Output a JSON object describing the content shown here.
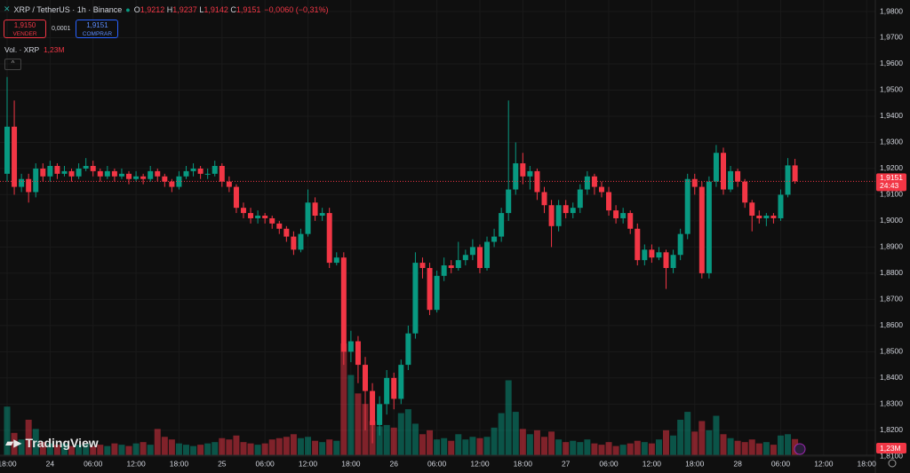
{
  "chart_data": {
    "type": "candlestick",
    "title": "XRP / TetherUS · 1h · Binance",
    "ohlc_letters": [
      "O",
      "H",
      "L",
      "C"
    ],
    "ohlc_texts": [
      "1,9212",
      "1,9237",
      "1,9142",
      "1,9151"
    ],
    "change_text": "−0,0060 (−0,31%)",
    "sell": {
      "price": "1,9150",
      "label": "VENDER"
    },
    "spread": "0,0001",
    "buy": {
      "price": "1,9151",
      "label": "COMPRAR"
    },
    "volume_title": "Vol. · XRP",
    "volume_label": "1,23M",
    "logo": "TradingView",
    "countdown": "24:43",
    "current_price": {
      "value": 1.9151,
      "label": "1,9151"
    },
    "up_color": "#089981",
    "down_color": "#f23645",
    "ylim": [
      1.80366,
      1.98441
    ],
    "yticks": [
      {
        "value": 1.98,
        "label": "1,9800"
      },
      {
        "value": 1.97,
        "label": "1,9700"
      },
      {
        "value": 1.96,
        "label": "1,9600"
      },
      {
        "value": 1.95,
        "label": "1,9500"
      },
      {
        "value": 1.94,
        "label": "1,9400"
      },
      {
        "value": 1.93,
        "label": "1,9300"
      },
      {
        "value": 1.92,
        "label": "1,9200"
      },
      {
        "value": 1.91,
        "label": "1,9100"
      },
      {
        "value": 1.9,
        "label": "1,9000"
      },
      {
        "value": 1.89,
        "label": "1,8900"
      },
      {
        "value": 1.88,
        "label": "1,8800"
      },
      {
        "value": 1.87,
        "label": "1,8700"
      },
      {
        "value": 1.86,
        "label": "1,8600"
      },
      {
        "value": 1.85,
        "label": "1,8500"
      },
      {
        "value": 1.84,
        "label": "1,8400"
      },
      {
        "value": 1.83,
        "label": "1,8300"
      },
      {
        "value": 1.82,
        "label": "1,8200"
      },
      {
        "value": 1.81,
        "label": "1,8100"
      }
    ],
    "xticks": [
      {
        "value": 0,
        "label": "18:00"
      },
      {
        "value": 6,
        "label": "24"
      },
      {
        "value": 12,
        "label": "06:00"
      },
      {
        "value": 18,
        "label": "12:00"
      },
      {
        "value": 24,
        "label": "18:00"
      },
      {
        "value": 30,
        "label": "25"
      },
      {
        "value": 36,
        "label": "06:00"
      },
      {
        "value": 42,
        "label": "12:00"
      },
      {
        "value": 48,
        "label": "18:00"
      },
      {
        "value": 54,
        "label": "26"
      },
      {
        "value": 60,
        "label": "06:00"
      },
      {
        "value": 66,
        "label": "12:00"
      },
      {
        "value": 72,
        "label": "18:00"
      },
      {
        "value": 78,
        "label": "27"
      },
      {
        "value": 84,
        "label": "06:00"
      },
      {
        "value": 90,
        "label": "12:00"
      },
      {
        "value": 96,
        "label": "18:00"
      },
      {
        "value": 102,
        "label": "28"
      },
      {
        "value": 108,
        "label": "06:00"
      },
      {
        "value": 114,
        "label": "12:00"
      },
      {
        "value": 120,
        "label": "18:00"
      }
    ],
    "candles": [
      [
        1.918,
        1.955,
        1.915,
        1.936
      ],
      [
        1.936,
        1.946,
        1.91,
        1.913
      ],
      [
        1.913,
        1.918,
        1.911,
        1.916
      ],
      [
        1.916,
        1.918,
        1.907,
        1.911
      ],
      [
        1.911,
        1.922,
        1.909,
        1.92
      ],
      [
        1.92,
        1.922,
        1.915,
        1.917
      ],
      [
        1.917,
        1.923,
        1.915,
        1.921
      ],
      [
        1.921,
        1.922,
        1.916,
        1.918
      ],
      [
        1.918,
        1.921,
        1.917,
        1.919
      ],
      [
        1.919,
        1.92,
        1.915,
        1.917
      ],
      [
        1.917,
        1.922,
        1.916,
        1.92
      ],
      [
        1.92,
        1.924,
        1.919,
        1.921
      ],
      [
        1.921,
        1.923,
        1.917,
        1.919
      ],
      [
        1.919,
        1.92,
        1.915,
        1.917
      ],
      [
        1.917,
        1.921,
        1.916,
        1.919
      ],
      [
        1.919,
        1.92,
        1.915,
        1.917
      ],
      [
        1.917,
        1.92,
        1.916,
        1.918
      ],
      [
        1.918,
        1.919,
        1.914,
        1.916
      ],
      [
        1.916,
        1.919,
        1.915,
        1.917
      ],
      [
        1.917,
        1.918,
        1.914,
        1.916
      ],
      [
        1.916,
        1.921,
        1.915,
        1.919
      ],
      [
        1.919,
        1.92,
        1.915,
        1.917
      ],
      [
        1.917,
        1.918,
        1.913,
        1.915
      ],
      [
        1.915,
        1.916,
        1.911,
        1.913
      ],
      [
        1.913,
        1.919,
        1.912,
        1.917
      ],
      [
        1.917,
        1.921,
        1.916,
        1.919
      ],
      [
        1.919,
        1.922,
        1.917,
        1.92
      ],
      [
        1.92,
        1.921,
        1.916,
        1.918
      ],
      [
        1.918,
        1.92,
        1.916,
        1.918
      ],
      [
        1.918,
        1.923,
        1.917,
        1.921
      ],
      [
        1.921,
        1.922,
        1.913,
        1.915
      ],
      [
        1.915,
        1.917,
        1.911,
        1.913
      ],
      [
        1.913,
        1.914,
        1.903,
        1.905
      ],
      [
        1.905,
        1.907,
        1.901,
        1.903
      ],
      [
        1.903,
        1.905,
        1.899,
        1.901
      ],
      [
        1.901,
        1.904,
        1.899,
        1.902
      ],
      [
        1.902,
        1.903,
        1.899,
        1.901
      ],
      [
        1.901,
        1.902,
        1.897,
        1.899
      ],
      [
        1.899,
        1.9,
        1.895,
        1.897
      ],
      [
        1.897,
        1.898,
        1.892,
        1.894
      ],
      [
        1.894,
        1.896,
        1.887,
        1.889
      ],
      [
        1.889,
        1.897,
        1.888,
        1.895
      ],
      [
        1.895,
        1.912,
        1.894,
        1.907
      ],
      [
        1.907,
        1.909,
        1.9,
        1.902
      ],
      [
        1.902,
        1.905,
        1.9,
        1.903
      ],
      [
        1.903,
        1.905,
        1.882,
        1.884
      ],
      [
        1.884,
        1.888,
        1.883,
        1.886
      ],
      [
        1.886,
        1.888,
        1.845,
        1.85
      ],
      [
        1.85,
        1.858,
        1.846,
        1.854
      ],
      [
        1.854,
        1.856,
        1.838,
        1.845
      ],
      [
        1.845,
        1.848,
        1.82,
        1.835
      ],
      [
        1.835,
        1.838,
        1.815,
        1.822
      ],
      [
        1.822,
        1.833,
        1.818,
        1.83
      ],
      [
        1.83,
        1.843,
        1.826,
        1.84
      ],
      [
        1.84,
        1.842,
        1.828,
        1.832
      ],
      [
        1.832,
        1.847,
        1.83,
        1.845
      ],
      [
        1.845,
        1.86,
        1.843,
        1.857
      ],
      [
        1.857,
        1.888,
        1.855,
        1.884
      ],
      [
        1.884,
        1.886,
        1.878,
        1.882
      ],
      [
        1.882,
        1.884,
        1.864,
        1.866
      ],
      [
        1.866,
        1.881,
        1.865,
        1.879
      ],
      [
        1.879,
        1.886,
        1.877,
        1.883
      ],
      [
        1.883,
        1.885,
        1.88,
        1.882
      ],
      [
        1.882,
        1.892,
        1.881,
        1.885
      ],
      [
        1.885,
        1.889,
        1.883,
        1.887
      ],
      [
        1.887,
        1.893,
        1.885,
        1.89
      ],
      [
        1.89,
        1.891,
        1.88,
        1.882
      ],
      [
        1.882,
        1.894,
        1.881,
        1.892
      ],
      [
        1.892,
        1.897,
        1.89,
        1.894
      ],
      [
        1.894,
        1.905,
        1.892,
        1.903
      ],
      [
        1.903,
        1.946,
        1.9,
        1.912
      ],
      [
        1.912,
        1.93,
        1.91,
        1.922
      ],
      [
        1.922,
        1.926,
        1.914,
        1.917
      ],
      [
        1.917,
        1.921,
        1.912,
        1.919
      ],
      [
        1.919,
        1.92,
        1.908,
        1.911
      ],
      [
        1.911,
        1.913,
        1.903,
        1.906
      ],
      [
        1.906,
        1.908,
        1.89,
        1.898
      ],
      [
        1.898,
        1.908,
        1.896,
        1.906
      ],
      [
        1.906,
        1.908,
        1.901,
        1.903
      ],
      [
        1.903,
        1.907,
        1.901,
        1.905
      ],
      [
        1.905,
        1.914,
        1.903,
        1.912
      ],
      [
        1.912,
        1.919,
        1.91,
        1.917
      ],
      [
        1.917,
        1.918,
        1.91,
        1.913
      ],
      [
        1.913,
        1.915,
        1.909,
        1.911
      ],
      [
        1.911,
        1.913,
        1.902,
        1.904
      ],
      [
        1.904,
        1.906,
        1.899,
        1.901
      ],
      [
        1.901,
        1.905,
        1.899,
        1.903
      ],
      [
        1.903,
        1.904,
        1.895,
        1.897
      ],
      [
        1.897,
        1.899,
        1.883,
        1.885
      ],
      [
        1.885,
        1.891,
        1.883,
        1.889
      ],
      [
        1.889,
        1.891,
        1.884,
        1.886
      ],
      [
        1.886,
        1.89,
        1.885,
        1.888
      ],
      [
        1.888,
        1.889,
        1.874,
        1.882
      ],
      [
        1.882,
        1.889,
        1.88,
        1.887
      ],
      [
        1.887,
        1.897,
        1.885,
        1.895
      ],
      [
        1.895,
        1.918,
        1.893,
        1.916
      ],
      [
        1.916,
        1.918,
        1.91,
        1.913
      ],
      [
        1.913,
        1.915,
        1.878,
        1.88
      ],
      [
        1.88,
        1.917,
        1.878,
        1.915
      ],
      [
        1.915,
        1.929,
        1.913,
        1.926
      ],
      [
        1.926,
        1.928,
        1.91,
        1.912
      ],
      [
        1.912,
        1.921,
        1.911,
        1.919
      ],
      [
        1.919,
        1.92,
        1.913,
        1.915
      ],
      [
        1.915,
        1.916,
        1.905,
        1.907
      ],
      [
        1.907,
        1.908,
        1.896,
        1.902
      ],
      [
        1.902,
        1.904,
        1.899,
        1.901
      ],
      [
        1.901,
        1.903,
        1.898,
        1.902
      ],
      [
        1.902,
        1.903,
        1.899,
        1.901
      ],
      [
        1.901,
        1.912,
        1.9,
        1.91
      ],
      [
        1.91,
        1.924,
        1.909,
        1.9212
      ],
      [
        1.9212,
        1.9237,
        1.9142,
        1.9151
      ]
    ],
    "volumes": [
      3.7,
      1.7,
      1.2,
      2.7,
      2.0,
      1.0,
      0.9,
      0.8,
      0.9,
      0.7,
      0.8,
      0.9,
      0.7,
      0.8,
      0.7,
      0.9,
      0.8,
      0.7,
      0.9,
      1.0,
      0.8,
      2.0,
      1.4,
      1.2,
      0.9,
      0.8,
      0.7,
      0.8,
      0.9,
      1.0,
      1.3,
      1.2,
      1.5,
      1.0,
      0.9,
      0.8,
      0.9,
      1.2,
      1.3,
      1.4,
      1.6,
      1.3,
      1.4,
      1.1,
      1.0,
      1.2,
      1.1,
      8.5,
      6.1,
      4.7,
      3.9,
      2.6,
      2.2,
      2.3,
      2.1,
      3.2,
      3.5,
      2.4,
      1.6,
      1.9,
      1.2,
      1.3,
      1.1,
      1.6,
      1.2,
      1.4,
      1.3,
      1.4,
      2.1,
      3.2,
      5.7,
      3.3,
      2.0,
      1.6,
      1.9,
      1.4,
      1.8,
      1.2,
      1.0,
      1.1,
      1.0,
      1.2,
      0.9,
      0.8,
      1.0,
      0.7,
      0.8,
      0.9,
      1.1,
      1.0,
      0.9,
      1.2,
      1.9,
      1.5,
      2.7,
      3.3,
      1.8,
      2.6,
      1.9,
      3.0,
      1.6,
      1.3,
      1.1,
      1.0,
      1.2,
      0.9,
      1.0,
      0.8,
      1.5,
      1.6,
      1.23
    ]
  }
}
